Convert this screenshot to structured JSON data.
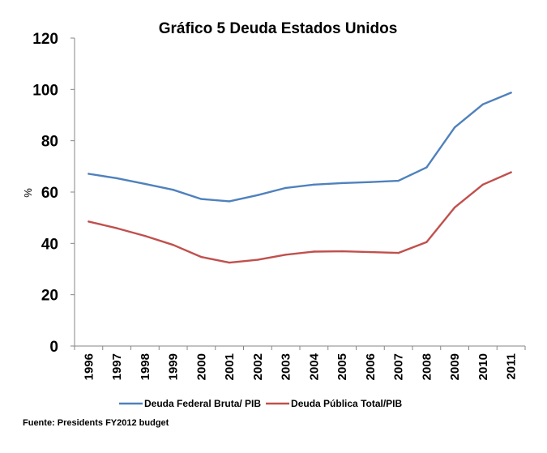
{
  "chart_data": {
    "type": "line",
    "title": "Gráfico 5   Deuda Estados Unidos",
    "xlabel": "",
    "ylabel": "%",
    "ylim": [
      0,
      120
    ],
    "yticks": [
      "0",
      "20",
      "40",
      "60",
      "80",
      "100",
      "120"
    ],
    "grid": false,
    "legend_position": "bottom",
    "categories": [
      "1996",
      "1997",
      "1998",
      "1999",
      "2000",
      "2001",
      "2002",
      "2003",
      "2004",
      "2005",
      "2006",
      "2007",
      "2008",
      "2009",
      "2010",
      "2011"
    ],
    "series": [
      {
        "name": "Deuda Federal Bruta/ PIB",
        "color": "#4F81BD",
        "values": [
          67.1,
          65.4,
          63.2,
          60.9,
          57.3,
          56.4,
          58.8,
          61.6,
          62.9,
          63.5,
          63.9,
          64.4,
          69.6,
          85.2,
          94.2,
          98.7
        ]
      },
      {
        "name": "Deuda Pública Total/PIB",
        "color": "#C0504D",
        "values": [
          48.5,
          45.9,
          42.9,
          39.4,
          34.7,
          32.5,
          33.6,
          35.6,
          36.8,
          36.9,
          36.6,
          36.3,
          40.5,
          54.0,
          62.9,
          67.7
        ]
      }
    ],
    "source": "Fuente: Presidents FY2012 budget"
  }
}
